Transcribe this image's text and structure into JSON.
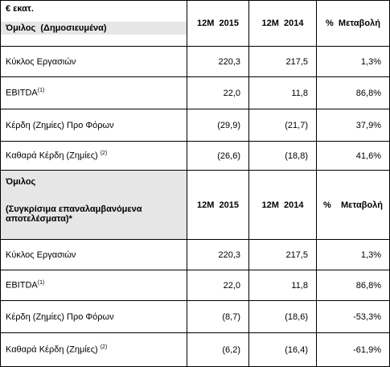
{
  "table": {
    "unit": "€ εκατ.",
    "sections": [
      {
        "title": [
          "Όμιλος  (Δημοσιευμένα)"
        ],
        "columns": [
          "12M  2015",
          "12M  2014",
          "%  Μεταβολή"
        ],
        "rows": [
          {
            "label": "Κύκλος Εργασιών",
            "cells": [
              "220,3",
              "217,5",
              "1,3%"
            ]
          },
          {
            "label": "EBITDA",
            "sup": "(1)",
            "cells": [
              "22,0",
              "11,8",
              "86,8%"
            ]
          },
          {
            "label": "Κέρδη (Ζημίες) Προ Φόρων",
            "cells": [
              "(29,9)",
              "(21,7)",
              "37,9%"
            ]
          },
          {
            "label": "Καθαρά Κέρδη (Ζημίες) ",
            "sup": "(2)",
            "cells": [
              "(26,6)",
              "(18,8)",
              "41,6%"
            ]
          }
        ]
      },
      {
        "title": [
          "Όμιλος",
          "(Συγκρίσιμα επαναλαμβανόμενα αποτελέσματα)*"
        ],
        "columns": [
          "12M  2015",
          "12M  2014",
          "%    Μεταβολή"
        ],
        "rows": [
          {
            "label": "Κύκλος Εργασιών",
            "cells": [
              "220,3",
              "217,5",
              "1,3%"
            ]
          },
          {
            "label": "EBITDA",
            "sup": "(1)",
            "cells": [
              "22,0",
              "11,8",
              "86,8%"
            ]
          },
          {
            "label": "Κέρδη (Ζημίες) Προ Φόρων",
            "cells": [
              "(8,7)",
              "(18,6)",
              "-53,3%"
            ]
          },
          {
            "label": "Καθαρά Κέρδη (Ζημίες) ",
            "sup": "(2)",
            "cells": [
              "(6,2)",
              "(16,4)",
              "-61,9%"
            ]
          }
        ]
      }
    ]
  }
}
